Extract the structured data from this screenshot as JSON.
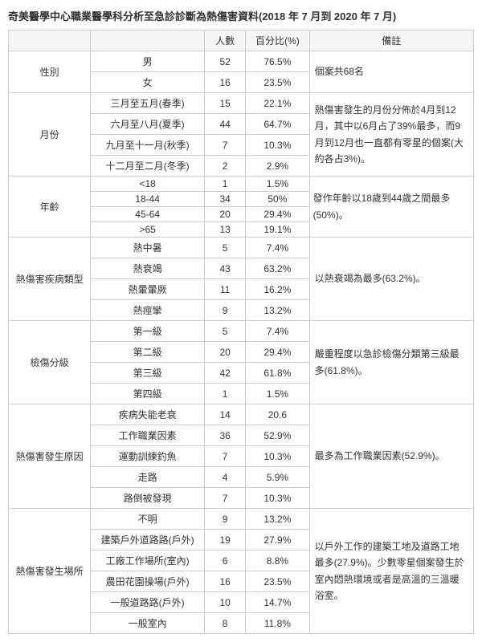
{
  "title": "奇美醫學中心職業醫學科分析至急診診斷為熱傷害資料(2018 年 7 月到 2020 年 7 月)",
  "headers": {
    "count": "人數",
    "pct": "百分比(%)",
    "note": "備註"
  },
  "groups": [
    {
      "name": "性別",
      "rows": [
        {
          "sub": "男",
          "n": "52",
          "pct": "76.5%"
        },
        {
          "sub": "女",
          "n": "16",
          "pct": "23.5%"
        }
      ],
      "note": "個案共68名"
    },
    {
      "name": "月份",
      "rows": [
        {
          "sub": "三月至五月(春季)",
          "n": "15",
          "pct": "22.1%"
        },
        {
          "sub": "六月至八月(夏季)",
          "n": "44",
          "pct": "64.7%"
        },
        {
          "sub": "九月至十一月(秋季)",
          "n": "7",
          "pct": "10.3%"
        },
        {
          "sub": "十二月至二月(冬季)",
          "n": "2",
          "pct": "2.9%"
        }
      ],
      "note": "熱傷害發生的月份分佈於4月到12月，其中以6月占了39%最多，而9月到12月也一直都有零星的個案(大約各占3%)。"
    },
    {
      "name": "年齡",
      "compact": true,
      "rows": [
        {
          "sub": "<18",
          "n": "1",
          "pct": "1.5%"
        },
        {
          "sub": "18-44",
          "n": "34",
          "pct": "50%"
        },
        {
          "sub": "45-64",
          "n": "20",
          "pct": "29.4%"
        },
        {
          "sub": ">65",
          "n": "13",
          "pct": "19.1%"
        }
      ],
      "note": "發作年齡以18歲到44歲之間最多(50%)。"
    },
    {
      "name": "熱傷害疾病類型",
      "rows": [
        {
          "sub": "熱中暑",
          "n": "5",
          "pct": "7.4%"
        },
        {
          "sub": "熱衰竭",
          "n": "43",
          "pct": "63.2%"
        },
        {
          "sub": "熱暈暈厥",
          "n": "11",
          "pct": "16.2%"
        },
        {
          "sub": "熱痙攣",
          "n": "9",
          "pct": "13.2%"
        }
      ],
      "note": "以熱衰竭為最多(63.2%)。"
    },
    {
      "name": "檢傷分級",
      "rows": [
        {
          "sub": "第一級",
          "n": "5",
          "pct": "7.4%"
        },
        {
          "sub": "第二級",
          "n": "20",
          "pct": "29.4%"
        },
        {
          "sub": "第三級",
          "n": "42",
          "pct": "61.8%"
        },
        {
          "sub": "第四級",
          "n": "1",
          "pct": "1.5%"
        }
      ],
      "note": "嚴重程度以急診檢傷分類第三級最多(61.8%)。"
    },
    {
      "name": "熱傷害發生原因",
      "rows": [
        {
          "sub": "疾病失能老衰",
          "n": "14",
          "pct": "20.6"
        },
        {
          "sub": "工作職業因素",
          "n": "36",
          "pct": "52.9%"
        },
        {
          "sub": "運動訓練釣魚",
          "n": "7",
          "pct": "10.3%"
        },
        {
          "sub": "走路",
          "n": "4",
          "pct": "5.9%"
        },
        {
          "sub": "路倒被發現",
          "n": "7",
          "pct": "10.3%"
        }
      ],
      "note": "最多為工作職業因素(52.9%)。"
    },
    {
      "name": "熱傷害發生場所",
      "rows": [
        {
          "sub": "不明",
          "n": "9",
          "pct": "13.2%"
        },
        {
          "sub": "建築戶外道路路(戶外)",
          "n": "19",
          "pct": "27.9%"
        },
        {
          "sub": "工廠工作場所(室內)",
          "n": "6",
          "pct": "8.8%"
        },
        {
          "sub": "農田花園操場(戶外)",
          "n": "16",
          "pct": "23.5%"
        },
        {
          "sub": "一般道路路(戶外)",
          "n": "10",
          "pct": "14.7%"
        },
        {
          "sub": "一般室內",
          "n": "8",
          "pct": "11.8%"
        }
      ],
      "note": "以戶外工作的建築工地及道路工地最多(27.9%)。少數零星個案發生於室內悶熱環境或者是高溫的三溫暖浴室。"
    }
  ]
}
